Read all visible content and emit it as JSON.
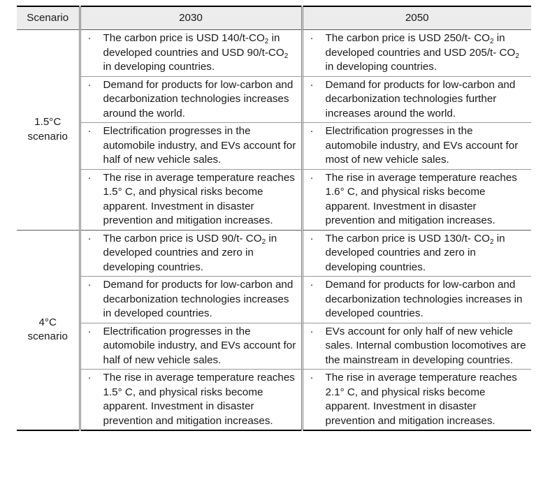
{
  "header": {
    "scenario": "Scenario",
    "y2030": "2030",
    "y2050": "2050"
  },
  "bullet": "·",
  "rows": [
    {
      "label_line1": "1.5°C",
      "label_line2": "scenario",
      "y2030": [
        {
          "a": "The carbon price is USD 140/t-CO",
          "sub1": "2",
          "b": " in developed countries and USD 90/t-CO",
          "sub2": "2",
          "c": " in developing countries."
        },
        {
          "text": "Demand for products for low-carbon and decarbonization technologies increases around the world."
        },
        {
          "text": "Electrification progresses in the automobile industry, and EVs account for half of new vehicle sales."
        },
        {
          "text": "The rise in average temperature reaches 1.5° C, and physical risks become apparent. Investment in disaster prevention and mitigation increases."
        }
      ],
      "y2050": [
        {
          "a": "The carbon price is USD 250/t- CO",
          "sub1": "2",
          "b": " in developed countries and USD 205/t- CO",
          "sub2": "2",
          "c": " in developing countries."
        },
        {
          "text": "Demand for products for low-carbon and decarbonization technologies further increases around the world."
        },
        {
          "text": "Electrification progresses in the automobile industry, and EVs account for most of new vehicle sales."
        },
        {
          "text": "The rise in average temperature reaches 1.6° C, and physical risks become apparent. Investment in disaster prevention and mitigation increases."
        }
      ]
    },
    {
      "label_line1": "4°C",
      "label_line2": "scenario",
      "y2030": [
        {
          "a": "The carbon price is USD 90/t- CO",
          "sub1": "2",
          "b": " in developed countries and zero in developing countries."
        },
        {
          "text": "Demand for products for low-carbon and decarbonization technologies increases in developed countries."
        },
        {
          "text": "Electrification progresses in the automobile industry, and EVs account for half of new vehicle sales."
        },
        {
          "text": "The rise in average temperature reaches 1.5° C, and physical risks become apparent. Investment in disaster prevention and mitigation increases."
        }
      ],
      "y2050": [
        {
          "a": "The carbon price is USD 130/t- CO",
          "sub1": "2",
          "b": " in developed countries and zero in developing countries."
        },
        {
          "text": "Demand for products for low-carbon and decarbonization technologies increases in developed countries."
        },
        {
          "text": "EVs account for only half of new vehicle sales. Internal combustion locomotives are the mainstream in developing countries."
        },
        {
          "text": "The rise in average temperature reaches 2.1° C, and physical risks become apparent. Investment in disaster prevention and mitigation increases."
        }
      ]
    }
  ]
}
